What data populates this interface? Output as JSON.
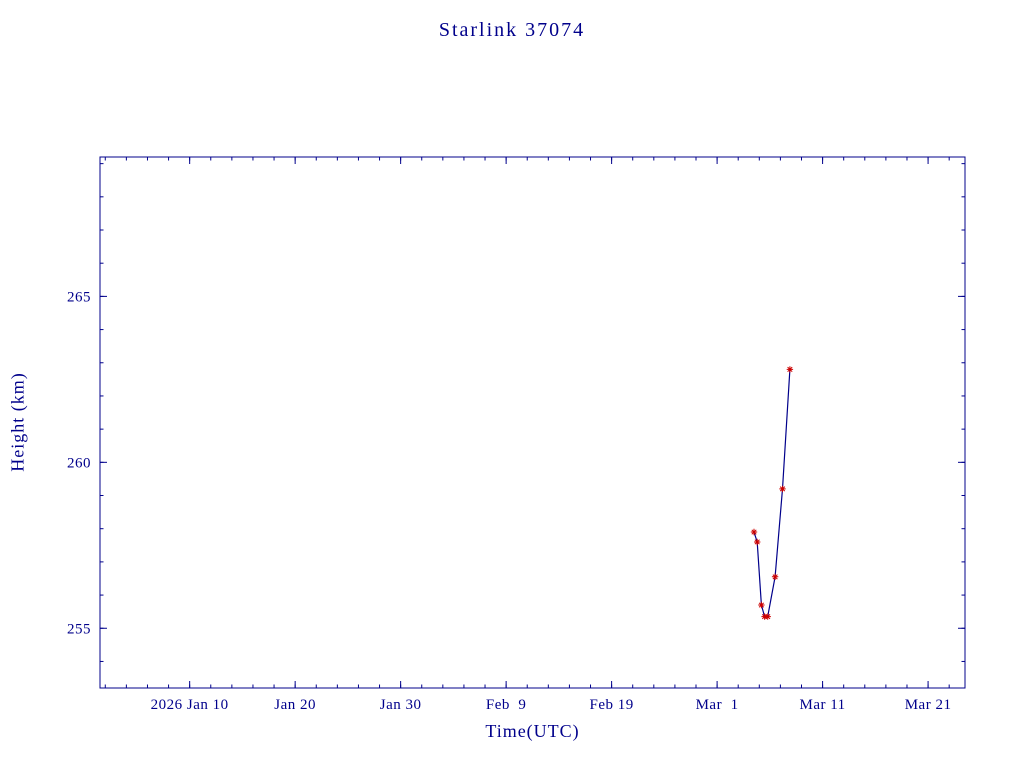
{
  "page": {
    "background": "#ffffff"
  },
  "chart_data": {
    "type": "line",
    "title": "Starlink 37074",
    "xlabel": "Time(UTC)",
    "ylabel": "Height (km)",
    "axis_color": "#00008b",
    "text_color": "#00008b",
    "grid": false,
    "legend": "none",
    "x_unit": "day_of_year_2026",
    "xlim": [
      1.5,
      83.5
    ],
    "ylim": [
      253.2,
      269.2
    ],
    "x_minor_step": 2,
    "y_minor_step": 1,
    "x_ticks": [
      {
        "day": 10,
        "label": "2026 Jan 10"
      },
      {
        "day": 20,
        "label": "Jan 20"
      },
      {
        "day": 30,
        "label": "Jan 30"
      },
      {
        "day": 40,
        "label": "Feb  9"
      },
      {
        "day": 50,
        "label": "Feb 19"
      },
      {
        "day": 60,
        "label": "Mar  1"
      },
      {
        "day": 70,
        "label": "Mar 11"
      },
      {
        "day": 80,
        "label": "Mar 21"
      }
    ],
    "y_ticks": [
      255,
      260,
      265
    ],
    "series": [
      {
        "name": "height",
        "marker": "asterisk",
        "marker_color": "#cc0000",
        "line_color": "#00008b",
        "points": [
          {
            "day": 63.5,
            "height": 257.9
          },
          {
            "day": 63.8,
            "height": 257.6
          },
          {
            "day": 64.2,
            "height": 255.7
          },
          {
            "day": 64.5,
            "height": 255.35
          },
          {
            "day": 64.8,
            "height": 255.35
          },
          {
            "day": 65.5,
            "height": 256.55
          },
          {
            "day": 66.2,
            "height": 259.2
          },
          {
            "day": 66.9,
            "height": 262.8
          }
        ]
      }
    ]
  }
}
